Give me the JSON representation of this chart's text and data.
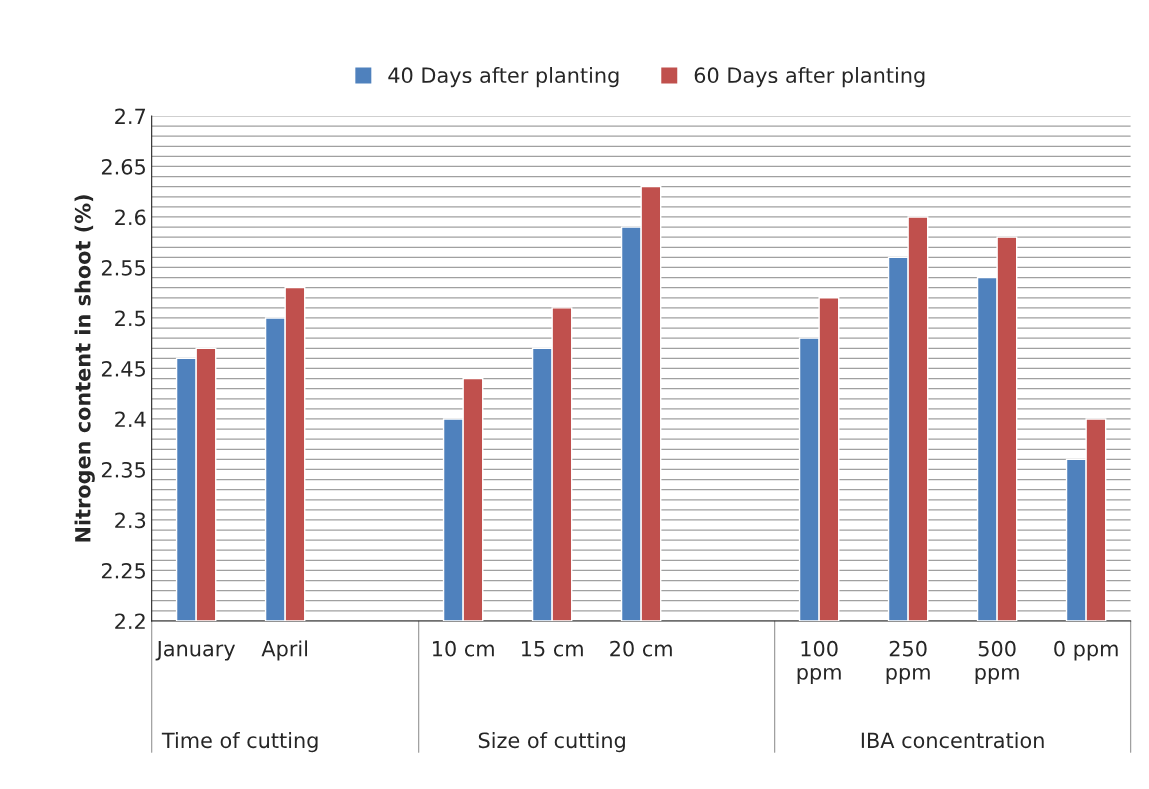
{
  "chart_data": {
    "type": "bar",
    "categories": [
      "January",
      "April",
      null,
      "10 cm",
      "15 cm",
      "20 cm",
      null,
      "100 ppm",
      "250 ppm",
      "500 ppm",
      "0 ppm"
    ],
    "series": [
      {
        "name": "40 Days after planting",
        "color": "#4f81bd",
        "values": [
          2.46,
          2.5,
          null,
          2.4,
          2.47,
          2.59,
          null,
          2.48,
          2.56,
          2.54,
          2.36
        ]
      },
      {
        "name": "60 Days after planting",
        "color": "#c0504d",
        "values": [
          2.47,
          2.53,
          null,
          2.44,
          2.51,
          2.63,
          null,
          2.52,
          2.6,
          2.58,
          2.4
        ]
      }
    ],
    "ylabel": "Nitrogen content in shoot (%)",
    "ylim": [
      2.2,
      2.7
    ],
    "yticks": [
      2.2,
      {
        "value": 2.21,
        "label": null
      },
      {
        "value": 2.22,
        "label": null
      },
      {
        "value": 2.23,
        "label": null
      },
      {
        "value": 2.24,
        "label": null
      },
      2.25,
      {
        "value": 2.26,
        "label": null
      },
      {
        "value": 2.27,
        "label": null
      },
      {
        "value": 2.28,
        "label": null
      },
      {
        "value": 2.29,
        "label": null
      },
      2.3,
      {
        "value": 2.31,
        "label": null
      },
      {
        "value": 2.32,
        "label": null
      },
      {
        "value": 2.33,
        "label": null
      },
      {
        "value": 2.34,
        "label": null
      },
      2.35,
      {
        "value": 2.36,
        "label": null
      },
      {
        "value": 2.37,
        "label": null
      },
      {
        "value": 2.38,
        "label": null
      },
      {
        "value": 2.39,
        "label": null
      },
      2.4,
      {
        "value": 2.41,
        "label": null
      },
      {
        "value": 2.42,
        "label": null
      },
      {
        "value": 2.43,
        "label": null
      },
      {
        "value": 2.44,
        "label": null
      },
      2.45,
      {
        "value": 2.46,
        "label": null
      },
      {
        "value": 2.47,
        "label": null
      },
      {
        "value": 2.48,
        "label": null
      },
      {
        "value": 2.49,
        "label": null
      },
      2.5,
      {
        "value": 2.51,
        "label": null
      },
      {
        "value": 2.52,
        "label": null
      },
      {
        "value": 2.53,
        "label": null
      },
      {
        "value": 2.54,
        "label": null
      },
      2.55,
      {
        "value": 2.56,
        "label": null
      },
      {
        "value": 2.57,
        "label": null
      },
      {
        "value": 2.58,
        "label": null
      },
      {
        "value": 2.59,
        "label": null
      },
      2.6,
      {
        "value": 2.61,
        "label": null
      },
      {
        "value": 2.62,
        "label": null
      },
      {
        "value": 2.63,
        "label": null
      },
      {
        "value": 2.64,
        "label": null
      },
      2.65,
      {
        "value": 2.66,
        "label": null
      },
      {
        "value": 2.67,
        "label": null
      },
      {
        "value": 2.68,
        "label": null
      },
      {
        "value": 2.69,
        "label": null
      },
      2.7
    ],
    "grid": "y",
    "legend": "top",
    "annotations": [
      "Time of cutting",
      "Size of cutting",
      "IBA concentration"
    ]
  }
}
